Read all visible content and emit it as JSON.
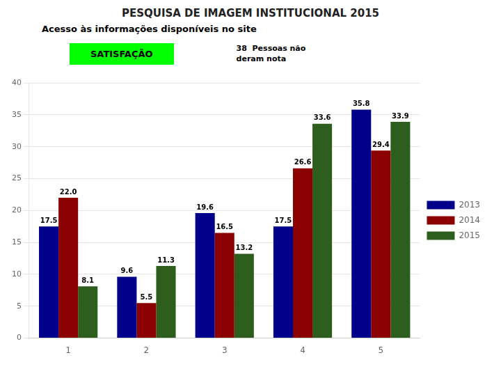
{
  "chart_data": {
    "type": "bar",
    "title": "PESQUISA DE IMAGEM INSTITUCIONAL  2015",
    "subtitle": "Acesso às informações disponíveis no site",
    "annotations": [
      "SATISFAÇÃO",
      "38  Pessoas não",
      "deram nota"
    ],
    "categories": [
      "1",
      "2",
      "3",
      "4",
      "5"
    ],
    "series": [
      {
        "name": "2013",
        "color": "#00008B",
        "values": [
          17.5,
          9.6,
          19.6,
          17.5,
          35.8
        ],
        "value_labels": [
          "17.5",
          "9.6",
          "19.6",
          "17.5",
          "35.8"
        ]
      },
      {
        "name": "2014",
        "color": "#8B0000",
        "values": [
          22.0,
          5.5,
          16.5,
          26.6,
          29.4
        ],
        "value_labels": [
          "22.0",
          "5.5",
          "16.5",
          "26.6",
          "29.4"
        ]
      },
      {
        "name": "2015",
        "color": "#2E5E1E",
        "values": [
          8.1,
          11.3,
          13.2,
          33.6,
          33.9
        ],
        "value_labels": [
          "8.1",
          "11.3",
          "13.2",
          "33.6",
          "33.9"
        ]
      }
    ],
    "ylim": [
      0,
      40
    ],
    "yticks": [
      0,
      5,
      10,
      15,
      20,
      25,
      30,
      35,
      40
    ],
    "grid": true,
    "legend": "right",
    "data_labels": true
  }
}
